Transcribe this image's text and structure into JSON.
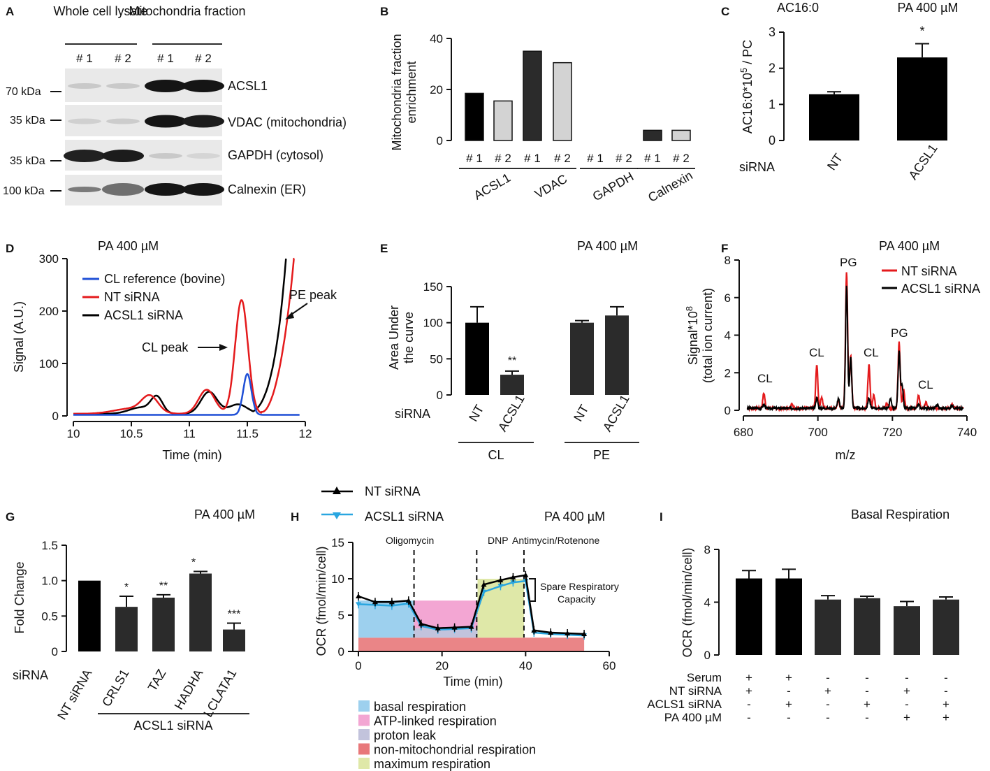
{
  "figure": {
    "panel_labels": [
      "A",
      "B",
      "C",
      "D",
      "E",
      "F",
      "G",
      "H",
      "I"
    ]
  },
  "colors": {
    "black": "#000000",
    "dark": "#2b2b2b",
    "light": "#d3d3d3",
    "red": "#e41a1c",
    "blue": "#1f4fd6",
    "cyan": "#29a6e0"
  },
  "panelA": {
    "headers": [
      "Whole cell lysate",
      "Mitochondria fraction"
    ],
    "lanes": [
      "# 1",
      "# 2",
      "# 1",
      "# 2"
    ],
    "markers": [
      "70 kDa",
      "35 kDa",
      "35 kDa",
      "100 kDa"
    ],
    "proteins": [
      "ACSL1",
      "VDAC (mitochondria)",
      "GAPDH (cytosol)",
      "Calnexin (ER)"
    ],
    "band_intensity": [
      [
        0.15,
        0.15,
        0.95,
        0.95
      ],
      [
        0.12,
        0.14,
        0.95,
        0.92
      ],
      [
        0.9,
        0.92,
        0.15,
        0.1
      ],
      [
        0.5,
        0.55,
        0.95,
        0.95
      ]
    ]
  },
  "chart_data": [
    {
      "panel": "B",
      "type": "bar",
      "ylabel": "Mitochondria fraction enrichment",
      "yticks": [
        0,
        20,
        40
      ],
      "ylim": [
        0,
        40
      ],
      "groups": [
        "ACSL1",
        "VDAC",
        "GAPDH",
        "Calnexin"
      ],
      "lanes": [
        "# 1",
        "# 2"
      ],
      "series": [
        {
          "name": "# 1",
          "values": [
            18.5,
            35,
            0,
            4
          ]
        },
        {
          "name": "# 2",
          "values": [
            15.5,
            30.5,
            0,
            4
          ]
        }
      ]
    },
    {
      "panel": "C",
      "type": "bar",
      "title_left": "AC16:0",
      "title_right": "PA 400 µM",
      "ylabel": "AC16:0*10^5 / PC",
      "yticks": [
        0,
        1,
        2,
        3
      ],
      "ylim": [
        0,
        3
      ],
      "xlabel": "siRNA",
      "categories": [
        "NT",
        "ACSL1"
      ],
      "values": [
        1.28,
        2.3
      ],
      "errors": [
        0.07,
        0.38
      ],
      "significance": [
        "",
        "*"
      ]
    },
    {
      "panel": "D",
      "type": "line",
      "title": "PA 400 µM",
      "xlabel": "Time (min)",
      "ylabel": "Signal (A.U.)",
      "xticks": [
        10,
        10.5,
        11,
        11.5,
        12
      ],
      "yticks": [
        0,
        100,
        200,
        300
      ],
      "xlim": [
        10,
        12
      ],
      "ylim": [
        0,
        300
      ],
      "series": [
        {
          "name": "CL reference (bovine)"
        },
        {
          "name": "NT siRNA"
        },
        {
          "name": "ACSL1 siRNA"
        }
      ],
      "annotations": [
        "PE peak",
        "CL peak"
      ]
    },
    {
      "panel": "E",
      "type": "bar",
      "title": "PA 400 µM",
      "ylabel": "Area Under the curve",
      "yticks": [
        0,
        50,
        100,
        150
      ],
      "ylim": [
        0,
        150
      ],
      "xlabel": "siRNA",
      "categories": [
        "NT",
        "ACSL1",
        "NT",
        "ACSL1"
      ],
      "groups": [
        "CL",
        "PE"
      ],
      "values": [
        100,
        28,
        100,
        110
      ],
      "errors": [
        22,
        5,
        3,
        12
      ],
      "significance": [
        "",
        "**",
        "",
        ""
      ]
    },
    {
      "panel": "F",
      "type": "line",
      "title": "PA 400 µM",
      "xlabel": "m/z",
      "ylabel": "Signal*10^8 (total ion current)",
      "xticks": [
        680,
        700,
        720,
        740
      ],
      "yticks": [
        0,
        2,
        4,
        6,
        8
      ],
      "xlim": [
        680,
        740
      ],
      "ylim": [
        0,
        8
      ],
      "series": [
        {
          "name": "NT siRNA"
        },
        {
          "name": "ACSL1 siRNA"
        }
      ],
      "peak_labels": [
        "CL",
        "CL",
        "PG",
        "CL",
        "PG",
        "CL"
      ]
    },
    {
      "panel": "G",
      "type": "bar",
      "title": "PA 400 µM",
      "ylabel": "Fold Change",
      "yticks": [
        "0",
        "0.5",
        "1.0",
        "1.5"
      ],
      "ylim": [
        0,
        1.5
      ],
      "xlabel": "siRNA",
      "categories": [
        "NT siRNA",
        "CRLS1",
        "TAZ",
        "HADHA",
        "LCLATA1"
      ],
      "group_label": "ACSL1 siRNA",
      "values": [
        1.0,
        0.63,
        0.76,
        1.1,
        0.31
      ],
      "errors": [
        0,
        0.15,
        0.04,
        0.03,
        0.09
      ],
      "significance": [
        "",
        "*",
        "**",
        "*",
        "***"
      ]
    },
    {
      "panel": "H",
      "type": "line",
      "title": "PA 400 µM",
      "xlabel": "Time (min)",
      "ylabel": "OCR (fmol/min/cell)",
      "xticks": [
        0,
        20,
        40,
        60
      ],
      "yticks": [
        0,
        5,
        10,
        15
      ],
      "xlim": [
        0,
        60
      ],
      "ylim": [
        0,
        15
      ],
      "injections": [
        "Oligomycin",
        "DNP",
        "Antimycin/Rotenone"
      ],
      "spare_label": "Spare Respiratory Capacity",
      "series": [
        {
          "name": "NT siRNA",
          "x": [
            0,
            4,
            8,
            12,
            15,
            19,
            23,
            27,
            30,
            34,
            37,
            40,
            42,
            46,
            50,
            54
          ],
          "values": [
            7.6,
            6.8,
            6.8,
            7.0,
            3.8,
            3.2,
            3.3,
            3.4,
            9.2,
            9.8,
            10.2,
            10.5,
            2.9,
            2.6,
            2.5,
            2.4
          ]
        },
        {
          "name": "ACSL1 siRNA",
          "x": [
            0,
            4,
            8,
            12,
            15,
            19,
            23,
            27,
            30,
            34,
            37,
            40,
            42,
            46,
            50,
            54
          ],
          "values": [
            6.5,
            6.4,
            6.3,
            6.6,
            3.5,
            3.0,
            3.1,
            3.2,
            8.2,
            9.0,
            9.5,
            9.7,
            2.6,
            2.4,
            2.3,
            2.2
          ]
        }
      ],
      "legend_regions": [
        "basal respiration",
        "ATP-linked respiration",
        "proton leak",
        "non-mitochondrial respiration",
        "maximum respiration"
      ]
    },
    {
      "panel": "I",
      "type": "bar",
      "title": "Basal Respiration",
      "ylabel": "OCR (fmol/min/cell)",
      "yticks": [
        0,
        4,
        8
      ],
      "ylim": [
        0,
        8
      ],
      "values": [
        5.8,
        5.8,
        4.2,
        4.3,
        3.7,
        4.2
      ],
      "errors": [
        0.6,
        0.7,
        0.3,
        0.15,
        0.35,
        0.2
      ],
      "conditions": [
        {
          "name": "Serum",
          "marks": [
            "+",
            "+",
            "-",
            "-",
            "-",
            "-"
          ]
        },
        {
          "name": "NT siRNA",
          "marks": [
            "+",
            "-",
            "+",
            "-",
            "+",
            "-"
          ]
        },
        {
          "name": "ACLS1 siRNA",
          "marks": [
            "-",
            "+",
            "-",
            "+",
            "-",
            "+"
          ]
        },
        {
          "name": "PA 400 µM",
          "marks": [
            "-",
            "-",
            "-",
            "-",
            "+",
            "+"
          ]
        }
      ]
    }
  ]
}
